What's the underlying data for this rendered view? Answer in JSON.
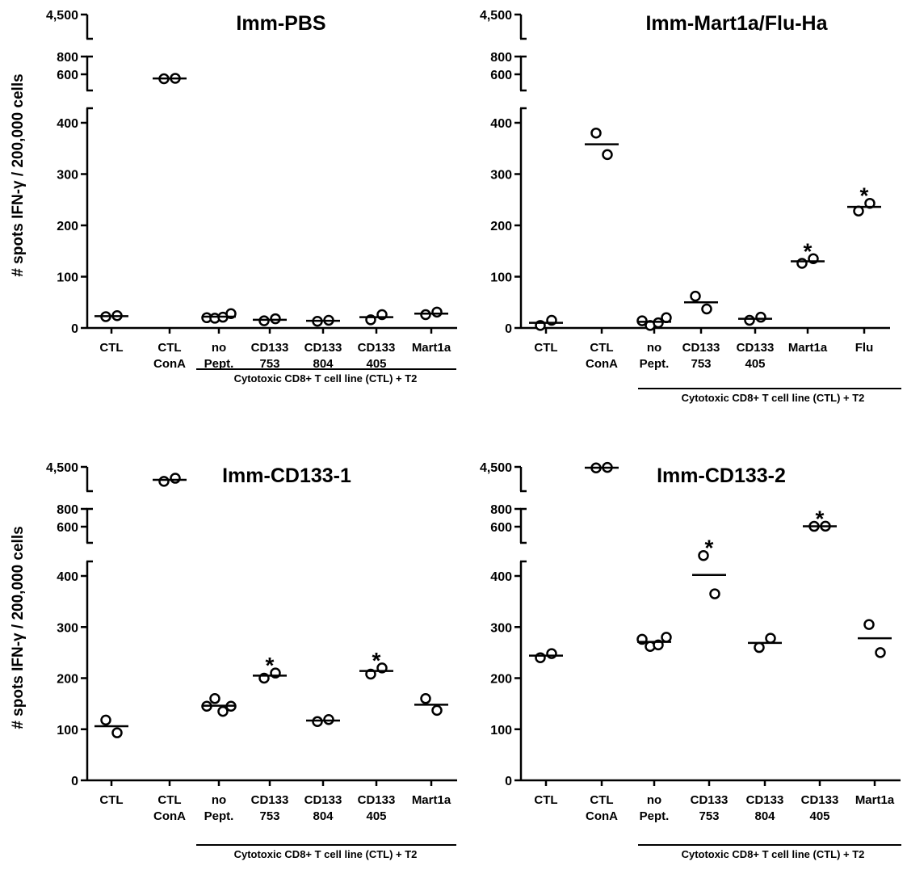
{
  "figure": {
    "ylabel": "# spots  IFN-γ / 200,000 cells",
    "group_label": "Cytotoxic CD8+ T cell  line (CTL) + T2"
  },
  "chart_data": [
    {
      "type": "scatter",
      "title": "Imm-PBS",
      "ylabel": "# spots  IFN-γ / 200,000 cells",
      "xlabel": "",
      "yticks": [
        "0",
        "100",
        "200",
        "300",
        "400",
        "600",
        "800",
        "4,500"
      ],
      "y_axis_break": true,
      "group_label": "Cytotoxic CD8+ T cell  line (CTL) + T2",
      "categories": [
        {
          "label": [
            "CTL"
          ],
          "points": [
            22,
            24
          ],
          "mean": 23,
          "star": false
        },
        {
          "label": [
            "CTL",
            "ConA"
          ],
          "points": [
            550,
            555
          ],
          "mean": 553,
          "star": false
        },
        {
          "label": [
            "no",
            "Pept."
          ],
          "points": [
            20,
            19,
            21,
            28
          ],
          "mean": 22,
          "star": false
        },
        {
          "label": [
            "CD133",
            "753"
          ],
          "points": [
            14,
            18
          ],
          "mean": 16,
          "star": false
        },
        {
          "label": [
            "CD133",
            "804"
          ],
          "points": [
            13,
            15
          ],
          "mean": 14,
          "star": false
        },
        {
          "label": [
            "CD133",
            "405"
          ],
          "points": [
            16,
            26
          ],
          "mean": 21,
          "star": false
        },
        {
          "label": [
            "Mart1a"
          ],
          "points": [
            26,
            31
          ],
          "mean": 28,
          "star": false
        }
      ]
    },
    {
      "type": "scatter",
      "title": "Imm-Mart1a/Flu-Ha",
      "ylabel": "",
      "xlabel": "",
      "yticks": [
        "0",
        "100",
        "200",
        "300",
        "400",
        "600",
        "800",
        "4,500"
      ],
      "y_axis_break": true,
      "group_label": "Cytotoxic CD8+ T cell  line (CTL) + T2",
      "categories": [
        {
          "label": [
            "CTL"
          ],
          "points": [
            5,
            15
          ],
          "mean": 10,
          "star": false
        },
        {
          "label": [
            "CTL",
            "ConA"
          ],
          "points": [
            380,
            338
          ],
          "mean": 358,
          "star": false
        },
        {
          "label": [
            "no",
            "Pept."
          ],
          "points": [
            14,
            5,
            10,
            20
          ],
          "mean": 12,
          "star": false
        },
        {
          "label": [
            "CD133",
            "753"
          ],
          "points": [
            62,
            37
          ],
          "mean": 50,
          "star": false
        },
        {
          "label": [
            "CD133",
            "405"
          ],
          "points": [
            15,
            21
          ],
          "mean": 18,
          "star": false
        },
        {
          "label": [
            "Mart1a"
          ],
          "points": [
            126,
            135
          ],
          "mean": 130,
          "star": true
        },
        {
          "label": [
            "Flu"
          ],
          "points": [
            228,
            243
          ],
          "mean": 236,
          "star": true
        }
      ]
    },
    {
      "type": "scatter",
      "title": "Imm-CD133-1",
      "ylabel": "# spots  IFN-γ / 200,000 cells",
      "xlabel": "",
      "yticks": [
        "0",
        "100",
        "200",
        "300",
        "400",
        "600",
        "800",
        "4,500"
      ],
      "y_axis_break": true,
      "group_label": "Cytotoxic CD8+ T cell  line (CTL) + T2",
      "categories": [
        {
          "label": [
            "CTL"
          ],
          "points": [
            118,
            93
          ],
          "mean": 106,
          "star": false
        },
        {
          "label": [
            "CTL",
            "ConA"
          ],
          "points": [
            3100,
            3400
          ],
          "mean": 3250,
          "star": false
        },
        {
          "label": [
            "no",
            "Pept."
          ],
          "points": [
            145,
            160,
            135,
            145
          ],
          "mean": 146,
          "star": false
        },
        {
          "label": [
            "CD133",
            "753"
          ],
          "points": [
            200,
            210
          ],
          "mean": 205,
          "star": true
        },
        {
          "label": [
            "CD133",
            "804"
          ],
          "points": [
            115,
            119
          ],
          "mean": 117,
          "star": false
        },
        {
          "label": [
            "CD133",
            "405"
          ],
          "points": [
            208,
            220
          ],
          "mean": 214,
          "star": true
        },
        {
          "label": [
            "Mart1a"
          ],
          "points": [
            160,
            137
          ],
          "mean": 148,
          "star": false
        }
      ]
    },
    {
      "type": "scatter",
      "title": "Imm-CD133-2",
      "ylabel": "# spots  IFN-γ / 200,000 cells",
      "xlabel": "",
      "yticks": [
        "0",
        "100",
        "200",
        "300",
        "400",
        "600",
        "800",
        "4,500"
      ],
      "y_axis_break": true,
      "group_label": "Cytotoxic CD8+ T cell  line (CTL) + T2",
      "categories": [
        {
          "label": [
            "CTL"
          ],
          "points": [
            240,
            248
          ],
          "mean": 244,
          "star": false
        },
        {
          "label": [
            "CTL",
            "ConA"
          ],
          "points": [
            4400,
            4450
          ],
          "mean": 4425,
          "star": false
        },
        {
          "label": [
            "no",
            "Pept."
          ],
          "points": [
            276,
            262,
            265,
            280
          ],
          "mean": 271,
          "star": false
        },
        {
          "label": [
            "CD133",
            "753"
          ],
          "points": [
            440,
            365
          ],
          "mean": 402,
          "star": true
        },
        {
          "label": [
            "CD133",
            "804"
          ],
          "points": [
            260,
            278
          ],
          "mean": 269,
          "star": false
        },
        {
          "label": [
            "CD133",
            "405"
          ],
          "points": [
            604,
            606
          ],
          "mean": 605,
          "star": true
        },
        {
          "label": [
            "Mart1a"
          ],
          "points": [
            305,
            250
          ],
          "mean": 278,
          "star": false
        }
      ]
    }
  ]
}
